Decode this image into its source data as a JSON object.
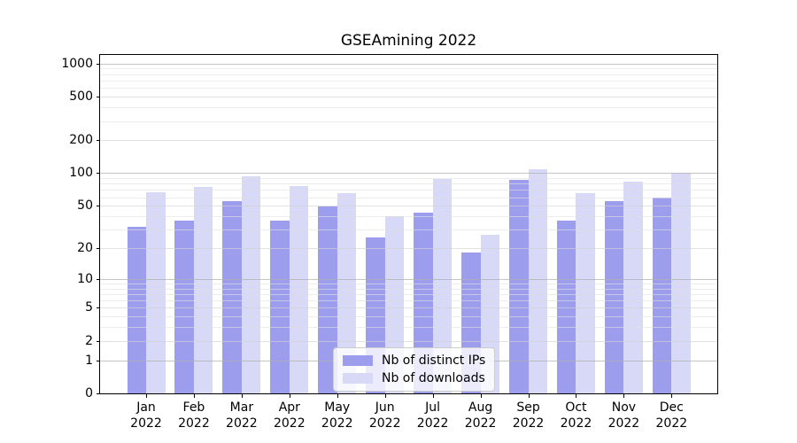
{
  "figure": {
    "title": "GSEAmining 2022"
  },
  "chart_data": {
    "type": "bar",
    "title": "GSEAmining 2022",
    "categories": [
      "Jan",
      "Feb",
      "Mar",
      "Apr",
      "May",
      "Jun",
      "Jul",
      "Aug",
      "Sep",
      "Oct",
      "Nov",
      "Dec"
    ],
    "category_year": "2022",
    "series": [
      {
        "name": "Nb of distinct IPs",
        "color": "#9d9dee",
        "values": [
          32,
          36,
          55,
          36,
          49,
          25,
          43,
          18,
          86,
          36,
          55,
          60
        ]
      },
      {
        "name": "Nb of downloads",
        "color": "#d8d8f7",
        "values": [
          67,
          74,
          94,
          76,
          66,
          40,
          88,
          27,
          108,
          66,
          83,
          100
        ]
      }
    ],
    "xlabel": "",
    "ylabel": "",
    "yscale": "log1p",
    "yticks": [
      0,
      1,
      2,
      5,
      10,
      20,
      50,
      100,
      200,
      500,
      1000
    ],
    "ylim": [
      0,
      1200
    ],
    "grid": "on",
    "grid_on_top": true,
    "grid_major_color": "#d0d0d0",
    "grid_minor_color": "#ebebeb",
    "legend_position": "lower center"
  }
}
